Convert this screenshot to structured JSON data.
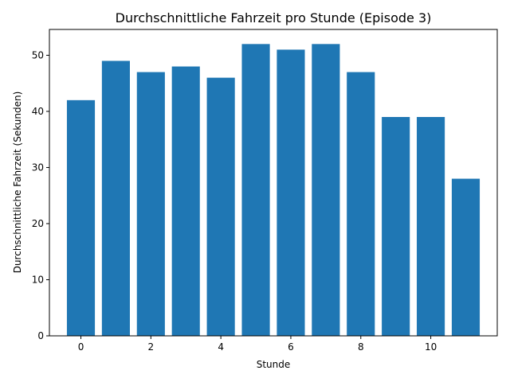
{
  "chart_data": {
    "type": "bar",
    "title": "Durchschnittliche Fahrzeit pro Stunde (Episode 3)",
    "xlabel": "Stunde",
    "ylabel": "Durchschnittliche Fahrzeit (Sekunden)",
    "x": [
      0,
      1,
      2,
      3,
      4,
      5,
      6,
      7,
      8,
      9,
      10,
      11
    ],
    "values": [
      42,
      49,
      47,
      48,
      46,
      52,
      51,
      52,
      47,
      39,
      39,
      28
    ],
    "xlim": [
      -0.9,
      11.9
    ],
    "ylim": [
      0,
      54.6
    ],
    "xticks": [
      0,
      2,
      4,
      6,
      8,
      10
    ],
    "yticks": [
      0,
      10,
      20,
      30,
      40,
      50
    ],
    "bar_color": "#1f77b4",
    "grid": false,
    "legend": "none"
  }
}
